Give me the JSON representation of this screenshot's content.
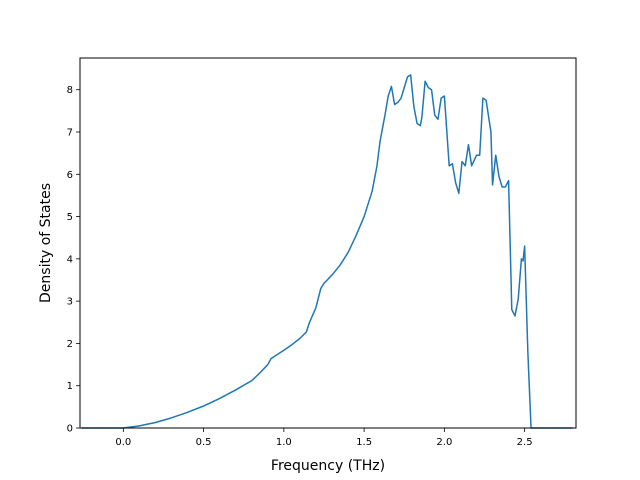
{
  "chart_data": {
    "type": "line",
    "title": "",
    "xlabel": "Frequency (THz)",
    "ylabel": "Density of States",
    "xlim": [
      -0.27,
      2.82
    ],
    "ylim": [
      0,
      8.75
    ],
    "grid": false,
    "legend": "none",
    "line_color": "#1f77b4",
    "xticks": [
      0.0,
      0.5,
      1.0,
      1.5,
      2.0,
      2.5
    ],
    "xtick_labels": [
      "0.0",
      "0.5",
      "1.0",
      "1.5",
      "2.0",
      "2.5"
    ],
    "yticks": [
      0,
      1,
      2,
      3,
      4,
      5,
      6,
      7,
      8
    ],
    "ytick_labels": [
      "0",
      "1",
      "2",
      "3",
      "4",
      "5",
      "6",
      "7",
      "8"
    ],
    "series": [
      {
        "x": [
          -0.26,
          0.0,
          0.1,
          0.2,
          0.3,
          0.4,
          0.5,
          0.6,
          0.7,
          0.8,
          0.85,
          0.9,
          0.92,
          1.0,
          1.05,
          1.1,
          1.14,
          1.16,
          1.2,
          1.23,
          1.25,
          1.3,
          1.35,
          1.4,
          1.45,
          1.5,
          1.55,
          1.58,
          1.6,
          1.63,
          1.65,
          1.67,
          1.69,
          1.71,
          1.73,
          1.75,
          1.77,
          1.79,
          1.81,
          1.83,
          1.85,
          1.86,
          1.88,
          1.9,
          1.92,
          1.94,
          1.96,
          1.98,
          2.0,
          2.03,
          2.05,
          2.07,
          2.09,
          2.11,
          2.13,
          2.15,
          2.17,
          2.2,
          2.22,
          2.24,
          2.26,
          2.29,
          2.3,
          2.32,
          2.34,
          2.36,
          2.38,
          2.4,
          2.42,
          2.44,
          2.46,
          2.48,
          2.49,
          2.5,
          2.52,
          2.54,
          2.6,
          2.8
        ],
        "y": [
          0.0,
          0.0,
          0.05,
          0.13,
          0.24,
          0.37,
          0.52,
          0.7,
          0.9,
          1.12,
          1.3,
          1.5,
          1.64,
          1.84,
          1.97,
          2.12,
          2.27,
          2.5,
          2.85,
          3.3,
          3.42,
          3.62,
          3.85,
          4.15,
          4.55,
          5.0,
          5.6,
          6.2,
          6.8,
          7.4,
          7.85,
          8.08,
          7.65,
          7.7,
          7.8,
          8.05,
          8.3,
          8.35,
          7.6,
          7.2,
          7.15,
          7.35,
          8.2,
          8.05,
          8.0,
          7.4,
          7.3,
          7.8,
          7.85,
          6.2,
          6.25,
          5.8,
          5.55,
          6.3,
          6.2,
          6.7,
          6.2,
          6.45,
          6.45,
          7.8,
          7.75,
          7.0,
          5.75,
          6.45,
          5.95,
          5.7,
          5.7,
          5.85,
          2.8,
          2.65,
          3.05,
          4.0,
          3.95,
          4.3,
          1.8,
          0.0,
          0.0,
          0.0
        ]
      }
    ]
  }
}
